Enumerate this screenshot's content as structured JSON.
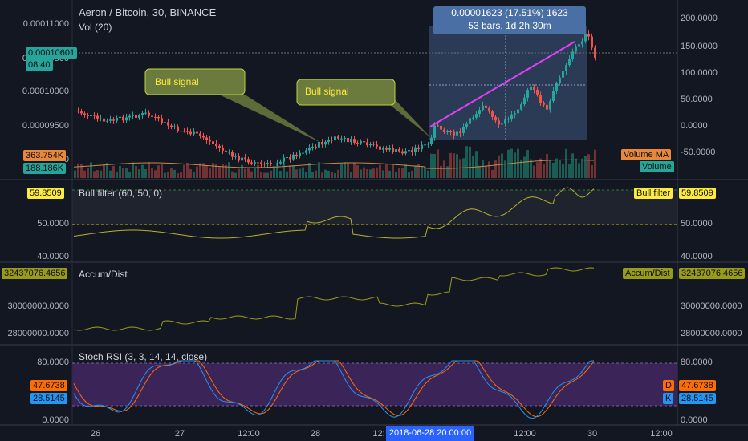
{
  "symbol_title": "Aeron / Bitcoin, 30, BINANCE",
  "vol_title": "Vol (20)",
  "price_axis": [
    "0.00011000",
    "0.00010500",
    "0.00010000",
    "0.00009500",
    "0"
  ],
  "current_price": "0.00010601",
  "countdown": "08:40",
  "vol_ma_value": "363.754K",
  "vol_value": "188.186K",
  "pct_axis": [
    "200.0000",
    "150.0000",
    "100.0000",
    "50.0000",
    "0.0000",
    "-50.0000"
  ],
  "callouts": [
    "Bull signal",
    "Bull signal"
  ],
  "measure": {
    "line1": "0.00001623 (17.51%) 1623",
    "line2": "53 bars, 1d 2h 30m"
  },
  "legend_tags": {
    "volume_ma": "Volume MA",
    "volume": "Volume"
  },
  "bull": {
    "title": "Bull filter (60, 50, 0)",
    "value": "59.8509",
    "tag": "Bull filter",
    "axis": [
      "50.0000",
      "40.0000"
    ]
  },
  "ad": {
    "title": "Accum/Dist",
    "value": "32437076.4656",
    "tag": "Accum/Dist",
    "axis": [
      "30000000.0000",
      "28000000.0000"
    ]
  },
  "stoch": {
    "title": "Stoch RSI (3, 3, 14, 14, close)",
    "d_value": "47.6738",
    "k_value": "28.5145",
    "d_tag": "D",
    "k_tag": "K",
    "axis": [
      "80.0000",
      "0.0000"
    ]
  },
  "time_axis": [
    "26",
    "27",
    "12:00",
    "28",
    "12:",
    "12:00",
    "30",
    "12:00"
  ],
  "cursor_time": "2018-06-28 20:00:00",
  "colors": {
    "background": "#131722",
    "up": "#26a69a",
    "down": "#ef5350",
    "accent_yellow": "#ffeb3b",
    "stoch_k": "#2196f3",
    "stoch_d": "#ff6d00"
  }
}
